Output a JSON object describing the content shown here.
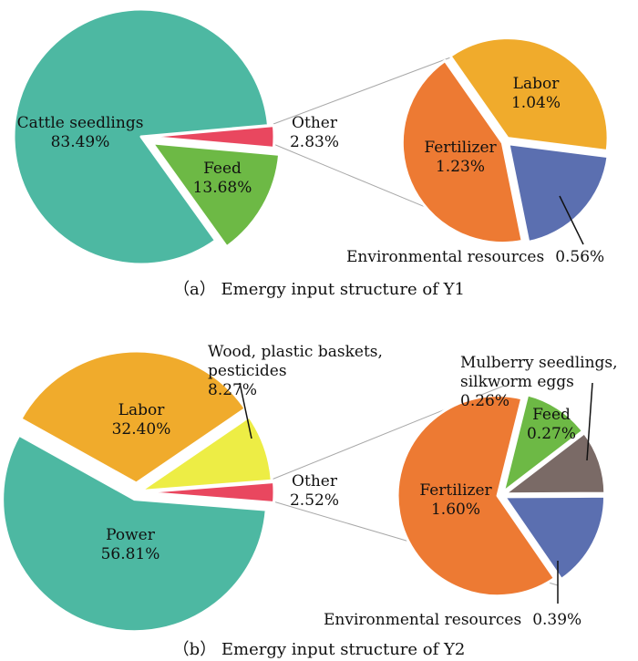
{
  "colors": {
    "teal": "#4db8a2",
    "red": "#e9475f",
    "green": "#6db945",
    "orange": "#ed7a33",
    "gold": "#f0ab2c",
    "blue": "#5b6fb0",
    "yellow": "#eded45",
    "brown": "#7a6a66",
    "connector": "#a8a8a8"
  },
  "chart_data": [
    {
      "type": "pie",
      "caption": "（a） Emergy input structure of Y1",
      "main": {
        "slices": [
          {
            "name": "Cattle seedlings",
            "value": 83.49,
            "label": "83.49%",
            "color": "#4db8a2"
          },
          {
            "name": "Other",
            "value": 2.83,
            "label": "2.83%",
            "color": "#e9475f"
          },
          {
            "name": "Feed",
            "value": 13.68,
            "label": "13.68%",
            "color": "#6db945"
          }
        ]
      },
      "breakdown": {
        "of": "Other",
        "slices": [
          {
            "name": "Labor",
            "value": 1.04,
            "label": "1.04%",
            "color": "#f0ab2c"
          },
          {
            "name": "Environmental resources",
            "value": 0.56,
            "label": "0.56%",
            "color": "#5b6fb0"
          },
          {
            "name": "Fertilizer",
            "value": 1.23,
            "label": "1.23%",
            "color": "#ed7a33"
          }
        ]
      }
    },
    {
      "type": "pie",
      "caption": "（b） Emergy input structure of Y2",
      "main": {
        "slices": [
          {
            "name": "Power",
            "value": 56.81,
            "label": "56.81%",
            "color": "#4db8a2"
          },
          {
            "name": "Labor",
            "value": 32.4,
            "label": "32.40%",
            "color": "#f0ab2c"
          },
          {
            "name": "Wood, plastic baskets, pesticides",
            "label_lines": [
              "Wood, plastic baskets,",
              "pesticides"
            ],
            "value": 8.27,
            "label": "8.27%",
            "color": "#eded45"
          },
          {
            "name": "Other",
            "value": 2.52,
            "label": "2.52%",
            "color": "#e9475f"
          }
        ]
      },
      "breakdown": {
        "of": "Other",
        "slices": [
          {
            "name": "Mulberry seedlings, silkworm eggs",
            "label_lines": [
              "Mulberry seedlings,",
              "silkworm eggs"
            ],
            "value": 0.26,
            "label": "0.26%",
            "color": "#7a6a66"
          },
          {
            "name": "Environmental resources",
            "value": 0.39,
            "label": "0.39%",
            "color": "#5b6fb0"
          },
          {
            "name": "Fertilizer",
            "value": 1.6,
            "label": "1.60%",
            "color": "#ed7a33"
          },
          {
            "name": "Feed",
            "value": 0.27,
            "label": "0.27%",
            "color": "#6db945"
          }
        ]
      }
    }
  ]
}
